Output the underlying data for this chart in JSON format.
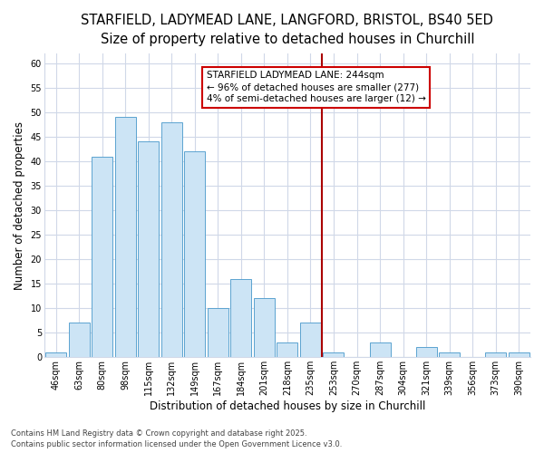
{
  "title_line1": "STARFIELD, LADYMEAD LANE, LANGFORD, BRISTOL, BS40 5ED",
  "title_line2": "Size of property relative to detached houses in Churchill",
  "xlabel": "Distribution of detached houses by size in Churchill",
  "ylabel": "Number of detached properties",
  "categories": [
    "46sqm",
    "63sqm",
    "80sqm",
    "98sqm",
    "115sqm",
    "132sqm",
    "149sqm",
    "167sqm",
    "184sqm",
    "201sqm",
    "218sqm",
    "235sqm",
    "253sqm",
    "270sqm",
    "287sqm",
    "304sqm",
    "321sqm",
    "339sqm",
    "356sqm",
    "373sqm",
    "390sqm"
  ],
  "values": [
    1,
    7,
    41,
    49,
    44,
    48,
    42,
    10,
    16,
    12,
    3,
    7,
    1,
    0,
    3,
    0,
    2,
    1,
    0,
    1,
    1
  ],
  "bar_color": "#cce4f5",
  "bar_edge_color": "#5ba3d0",
  "marker_index": 11.5,
  "marker_color": "#aa0000",
  "annotation_text": "STARFIELD LADYMEAD LANE: 244sqm\n← 96% of detached houses are smaller (277)\n4% of semi-detached houses are larger (12) →",
  "annotation_box_edgecolor": "#cc0000",
  "ylim": [
    0,
    62
  ],
  "yticks": [
    0,
    5,
    10,
    15,
    20,
    25,
    30,
    35,
    40,
    45,
    50,
    55,
    60
  ],
  "fig_bg": "#ffffff",
  "plot_bg": "#ffffff",
  "grid_color": "#d0d8e8",
  "footer_text": "Contains HM Land Registry data © Crown copyright and database right 2025.\nContains public sector information licensed under the Open Government Licence v3.0.",
  "title_fontsize": 10.5,
  "subtitle_fontsize": 9.5,
  "axis_label_fontsize": 8.5,
  "tick_fontsize": 7,
  "annotation_fontsize": 7.5,
  "footer_fontsize": 6
}
